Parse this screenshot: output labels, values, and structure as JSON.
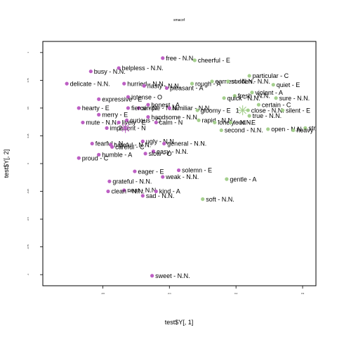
{
  "chart_data": {
    "type": "scatter",
    "title": "smacof",
    "xlabel": "test$Y[, 1]",
    "ylabel": "test$Y[, 2]",
    "xlim": [
      -1.05,
      1.0
    ],
    "ylim": [
      -1.1,
      1.1
    ],
    "x_ticks": [
      -0.6,
      -0.1,
      0.4,
      0.9
    ],
    "y_ticks": [
      -1.0,
      -0.75,
      -0.5,
      -0.25,
      0.0,
      0.25,
      0.5,
      0.75,
      1.0
    ],
    "grid": false,
    "legend": "none",
    "series": [
      {
        "color": "#bd5fc4",
        "labels": [
          "free - N.N.",
          "helpless - N.N.",
          "busy - N.N.",
          "delicate - N.N.",
          "hurried - N.N.",
          "hasty - N.N.",
          "pleasant - A",
          "intense - O",
          "expressive - E",
          "honest - A",
          "simple - N.N.",
          "hearty - E",
          "fierce - N",
          "familiar - N.N.",
          "merry - E",
          "handsome - N.N.",
          "curious - O",
          "mute - N.N.",
          "lively - E",
          "calm - N",
          "impatient - N",
          "ugly - N.N.",
          "fearful - N",
          "hateful - N.N.",
          "general - N.N.",
          "careful - C",
          "easy - N.N.",
          "humble - A",
          "slow - O",
          "proud - C",
          "solemn - E",
          "eager - E",
          "weak - N.N.",
          "grateful - N.N.",
          "neat - N.N.",
          "clean - N.N.",
          "kind - A",
          "sad - N.N.",
          "sweet - N.N."
        ],
        "x": [
          -0.15,
          -0.48,
          -0.69,
          -0.87,
          -0.44,
          -0.29,
          -0.12,
          -0.41,
          -0.63,
          -0.26,
          -0.33,
          -0.78,
          -0.41,
          -0.1,
          -0.63,
          -0.26,
          -0.42,
          -0.75,
          -0.48,
          -0.2,
          -0.57,
          -0.3,
          -0.68,
          -0.54,
          -0.14,
          -0.53,
          -0.22,
          -0.63,
          -0.28,
          -0.78,
          -0.03,
          -0.36,
          -0.15,
          -0.55,
          -0.44,
          -0.56,
          -0.2,
          -0.3,
          -0.23
        ],
        "y": [
          0.95,
          0.86,
          0.83,
          0.72,
          0.72,
          0.7,
          0.68,
          0.6,
          0.58,
          0.53,
          0.5,
          0.5,
          0.5,
          0.5,
          0.44,
          0.42,
          0.39,
          0.37,
          0.37,
          0.37,
          0.32,
          0.2,
          0.18,
          0.17,
          0.18,
          0.15,
          0.11,
          0.08,
          0.09,
          0.05,
          -0.06,
          -0.07,
          -0.12,
          -0.16,
          -0.24,
          -0.25,
          -0.25,
          -0.29,
          -1.01
        ]
      },
      {
        "color": "#a4cf8d",
        "labels": [
          "cheerful - E",
          "particular - C",
          "earnest - N.N.",
          "rough - A",
          "sudden - N.N.",
          "quiet - E",
          "violent - A",
          "fresh - N.N.",
          "quick - N.N.",
          "sure - N.N.",
          "certain - C",
          "gloomy - E",
          "close - N.N.",
          "silent - E",
          "true - N.N.",
          "rapid - N.N.",
          "lonely - N.N.",
          "loud - E",
          "open - N.N.",
          "strong - N.N.",
          "heavy - C",
          "second - N.N.",
          "gentle - A",
          "soft - N.N."
        ],
        "x": [
          0.09,
          0.5,
          0.22,
          0.07,
          0.34,
          0.68,
          0.52,
          0.39,
          0.31,
          0.7,
          0.57,
          0.11,
          0.49,
          0.75,
          0.5,
          0.12,
          0.24,
          0.36,
          0.64,
          0.92,
          0.83,
          0.29,
          0.33,
          0.15
        ],
        "y": [
          0.93,
          0.79,
          0.74,
          0.72,
          0.74,
          0.71,
          0.64,
          0.61,
          0.59,
          0.59,
          0.53,
          0.48,
          0.48,
          0.48,
          0.43,
          0.39,
          0.37,
          0.37,
          0.31,
          0.32,
          0.3,
          0.3,
          -0.14,
          -0.32
        ]
      }
    ],
    "centroids": [
      {
        "label": "1",
        "x": 0.45,
        "y": 0.48,
        "color": "#a4cf8d"
      },
      {
        "label": "2",
        "x": -0.43,
        "y": 0.32,
        "color": "#bd5fc4"
      }
    ]
  }
}
